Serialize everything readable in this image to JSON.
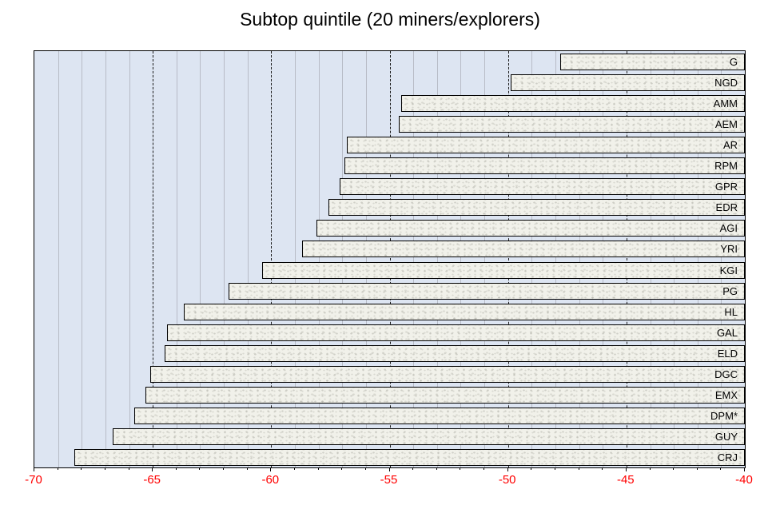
{
  "chart_data": {
    "type": "bar",
    "orientation": "horizontal",
    "title": "Subtop quintile (20 miners/explorers)",
    "categories": [
      "G",
      "NGD",
      "AMM",
      "AEM",
      "AR",
      "RPM",
      "GPR",
      "EDR",
      "AGI",
      "YRI",
      "KGI",
      "PG",
      "HL",
      "GAL",
      "ELD",
      "DGC",
      "EMX",
      "DPM*",
      "GUY",
      "CRJ"
    ],
    "values": [
      -47.8,
      -49.9,
      -54.5,
      -54.6,
      -56.8,
      -56.9,
      -57.1,
      -57.6,
      -58.1,
      -58.7,
      -60.4,
      -61.8,
      -63.7,
      -64.4,
      -64.5,
      -65.1,
      -65.3,
      -65.8,
      -66.7,
      -68.3
    ],
    "xlim": [
      -70,
      -40
    ],
    "x_major_ticks": [
      -70,
      -65,
      -60,
      -55,
      -50,
      -45,
      -40
    ],
    "x_tick_labels": [
      "-70",
      "-65",
      "-60",
      "-55",
      "-50",
      "-45",
      "-40"
    ],
    "minor_gridline_step": 1,
    "major_gridline_step": 5,
    "grid": "on",
    "legend": "none",
    "bars_anchored_at": -40,
    "colors": {
      "plot_background": "#dde5f2",
      "bar_fill": "#f1f1ea",
      "bar_border": "#000000",
      "minor_gridline": "#b7bbc6",
      "major_gridline_dashed": "#1a1a1a",
      "tick_label": "#ff0000",
      "title": "#000000"
    }
  }
}
